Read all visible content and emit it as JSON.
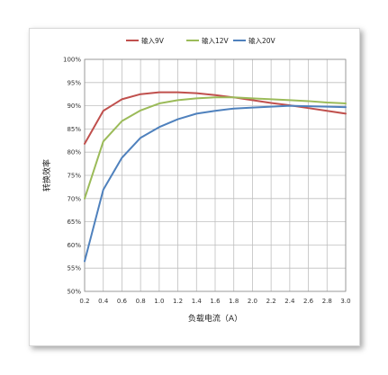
{
  "chart_data": {
    "type": "line",
    "title": "",
    "xlabel": "负载电流（A）",
    "ylabel": "转换效率",
    "x": [
      0.2,
      0.4,
      0.6,
      0.8,
      1.0,
      1.2,
      1.4,
      1.6,
      1.8,
      2.0,
      2.2,
      2.4,
      2.6,
      2.8,
      3.0
    ],
    "x_tick_labels": [
      "0.2",
      "0.4",
      "0.6",
      "0.8",
      "1.0",
      "1.2",
      "1.4",
      "1.6",
      "1.8",
      "2.0",
      "2.2",
      "2.4",
      "2.6",
      "2.8",
      "3.0"
    ],
    "xlim": [
      0.2,
      3.0
    ],
    "ylim": [
      50,
      100
    ],
    "y_ticks": [
      50,
      55,
      60,
      65,
      70,
      75,
      80,
      85,
      90,
      95,
      100
    ],
    "y_tick_labels": [
      "50%",
      "55%",
      "60%",
      "65%",
      "70%",
      "75%",
      "80%",
      "85%",
      "90%",
      "95%",
      "100%"
    ],
    "grid": true,
    "legend_position": "top-center",
    "series": [
      {
        "name": "输入9V",
        "color": "#c0504d",
        "values": [
          81.8,
          88.9,
          91.4,
          92.5,
          92.9,
          92.9,
          92.7,
          92.3,
          91.8,
          91.2,
          90.6,
          90.1,
          89.5,
          88.9,
          88.3
        ]
      },
      {
        "name": "输入12V",
        "color": "#9bbb59",
        "values": [
          70.0,
          82.3,
          86.7,
          89.0,
          90.5,
          91.2,
          91.6,
          91.8,
          91.8,
          91.6,
          91.4,
          91.2,
          91.0,
          90.7,
          90.5
        ]
      },
      {
        "name": "输入20V",
        "color": "#4f81bd",
        "values": [
          56.5,
          71.9,
          78.8,
          83.1,
          85.4,
          87.1,
          88.3,
          88.9,
          89.4,
          89.6,
          89.8,
          90.0,
          89.9,
          89.8,
          89.7
        ]
      }
    ]
  }
}
